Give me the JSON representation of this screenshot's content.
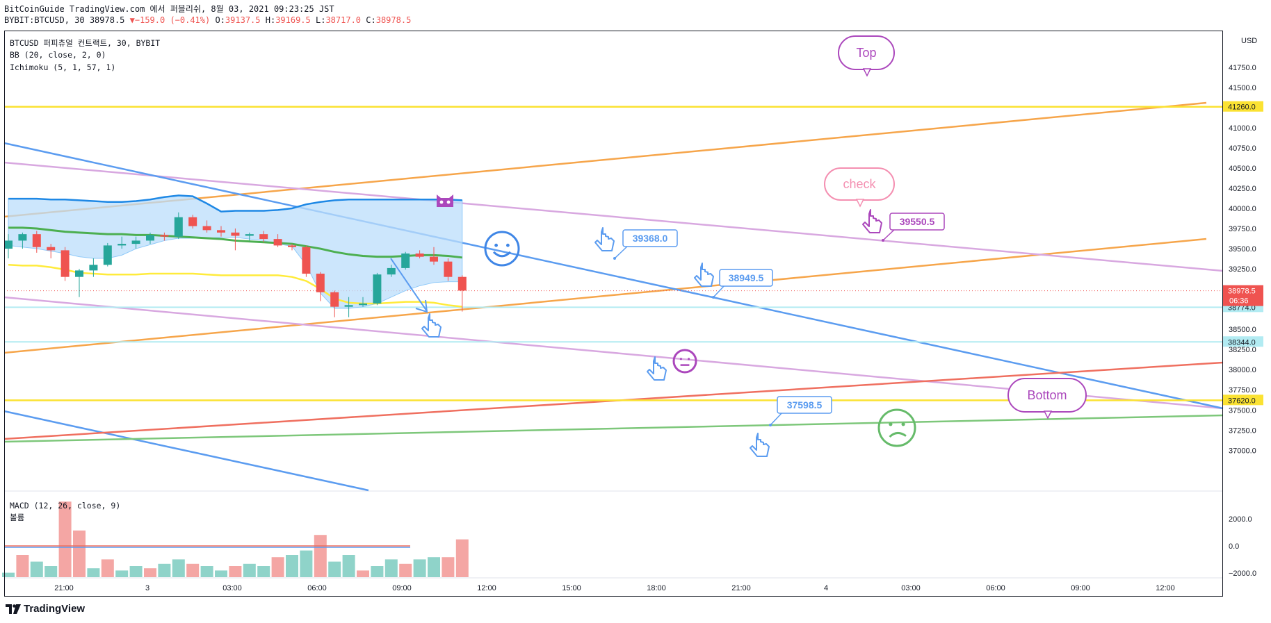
{
  "header": {
    "line1": "BitCoinGuide TradingView.com 에서 퍼블리쉬, 8월 03, 2021 09:23:25 JST",
    "symbol": "BYBIT:BTCUSD, 30",
    "last": "38978.5",
    "change": "▼−159.0 (−0.41%)",
    "o_label": "O:",
    "o": "39137.5",
    "h_label": "H:",
    "h": "39169.5",
    "l_label": "L:",
    "l": "38717.0",
    "c_label": "C:",
    "c": "38978.5"
  },
  "legend": {
    "title": "BTCUSD 퍼피츄얼 컨트랙트, 30, BYBIT",
    "bb": "BB (20, close, 2, 0)",
    "ichimoku": "Ichimoku (5, 1, 57, 1)",
    "macd": "MACD (12, 26, close, 9)",
    "volume": "볼륨"
  },
  "footer": {
    "brand": "TradingView"
  },
  "colors": {
    "up": "#26a69a",
    "down": "#ef5350",
    "bb_mid": "#4caf50",
    "bb_band": "#ffeb3b",
    "cloud": "#bbdefb",
    "tenkan": "#1e88e5",
    "trend_blue": "#5b9cf0",
    "orange": "#f6a54a",
    "purple": "#d8a8e0",
    "red": "#ef6f5f",
    "green": "#7dc77a",
    "yellow": "#fbe232"
  },
  "chart_data": {
    "type": "candlestick",
    "symbol": "BTCUSD",
    "interval": "30",
    "price_axis": {
      "ticks": [
        "41750.0",
        "41500.0",
        "41250.0",
        "41000.0",
        "40750.0",
        "40500.0",
        "40250.0",
        "40000.0",
        "39750.0",
        "39500.0",
        "39250.0",
        "39000.0",
        "38750.0",
        "38500.0",
        "38250.0",
        "38000.0",
        "37750.0",
        "37500.0",
        "37250.0",
        "37000.0"
      ],
      "currency": "USD",
      "ylim": [
        36900,
        41800
      ]
    },
    "time_axis": {
      "ticks": [
        "21:00",
        "3",
        "03:00",
        "06:00",
        "09:00",
        "12:00",
        "15:00",
        "18:00",
        "21:00",
        "4",
        "03:00",
        "06:00",
        "09:00",
        "12:00"
      ]
    },
    "candles": [
      {
        "o": 39500,
        "h": 39680,
        "l": 39380,
        "c": 39600
      },
      {
        "o": 39600,
        "h": 39700,
        "l": 39500,
        "c": 39680
      },
      {
        "o": 39680,
        "h": 39720,
        "l": 39450,
        "c": 39520
      },
      {
        "o": 39520,
        "h": 39560,
        "l": 39380,
        "c": 39480
      },
      {
        "o": 39480,
        "h": 39520,
        "l": 39100,
        "c": 39150
      },
      {
        "o": 39150,
        "h": 39250,
        "l": 38900,
        "c": 39230
      },
      {
        "o": 39230,
        "h": 39380,
        "l": 39150,
        "c": 39300
      },
      {
        "o": 39300,
        "h": 39570,
        "l": 39280,
        "c": 39540
      },
      {
        "o": 39540,
        "h": 39650,
        "l": 39500,
        "c": 39560
      },
      {
        "o": 39560,
        "h": 39650,
        "l": 39500,
        "c": 39600
      },
      {
        "o": 39600,
        "h": 39700,
        "l": 39560,
        "c": 39670
      },
      {
        "o": 39670,
        "h": 39700,
        "l": 39600,
        "c": 39650
      },
      {
        "o": 39650,
        "h": 39950,
        "l": 39620,
        "c": 39890
      },
      {
        "o": 39890,
        "h": 39920,
        "l": 39750,
        "c": 39780
      },
      {
        "o": 39780,
        "h": 39850,
        "l": 39700,
        "c": 39730
      },
      {
        "o": 39730,
        "h": 39780,
        "l": 39650,
        "c": 39700
      },
      {
        "o": 39700,
        "h": 39750,
        "l": 39480,
        "c": 39660
      },
      {
        "o": 39660,
        "h": 39700,
        "l": 39600,
        "c": 39680
      },
      {
        "o": 39680,
        "h": 39720,
        "l": 39580,
        "c": 39620
      },
      {
        "o": 39620,
        "h": 39680,
        "l": 39520,
        "c": 39540
      },
      {
        "o": 39540,
        "h": 39560,
        "l": 39480,
        "c": 39520
      },
      {
        "o": 39520,
        "h": 39540,
        "l": 39150,
        "c": 39190
      },
      {
        "o": 39190,
        "h": 39210,
        "l": 38850,
        "c": 38960
      },
      {
        "o": 38960,
        "h": 38980,
        "l": 38650,
        "c": 38780
      },
      {
        "o": 38780,
        "h": 38900,
        "l": 38650,
        "c": 38800
      },
      {
        "o": 38800,
        "h": 38900,
        "l": 38780,
        "c": 38820
      },
      {
        "o": 38820,
        "h": 39200,
        "l": 38800,
        "c": 39180
      },
      {
        "o": 39180,
        "h": 39300,
        "l": 39150,
        "c": 39260
      },
      {
        "o": 39260,
        "h": 39460,
        "l": 39240,
        "c": 39440
      },
      {
        "o": 39440,
        "h": 39480,
        "l": 39380,
        "c": 39400
      },
      {
        "o": 39400,
        "h": 39520,
        "l": 39300,
        "c": 39340
      },
      {
        "o": 39340,
        "h": 39380,
        "l": 39100,
        "c": 39150
      },
      {
        "o": 39150,
        "h": 39170,
        "l": 38720,
        "c": 38980
      }
    ],
    "bb_mid": [
      39760,
      39760,
      39750,
      39730,
      39710,
      39700,
      39690,
      39680,
      39680,
      39670,
      39670,
      39660,
      39650,
      39640,
      39630,
      39620,
      39600,
      39590,
      39580,
      39570,
      39560,
      39530,
      39500,
      39460,
      39430,
      39410,
      39400,
      39400,
      39410,
      39420,
      39420,
      39410,
      39390
    ],
    "bb_lower": [
      39300,
      39290,
      39290,
      39270,
      39240,
      39200,
      39190,
      39180,
      39180,
      39180,
      39190,
      39190,
      39190,
      39190,
      39180,
      39170,
      39170,
      39170,
      39170,
      39170,
      39150,
      39100,
      39000,
      38880,
      38830,
      38820,
      38820,
      38830,
      38840,
      38840,
      38830,
      38800,
      38780
    ],
    "tenkan": [
      40120,
      40120,
      40120,
      40110,
      40110,
      40100,
      40090,
      40080,
      40080,
      40090,
      40110,
      40140,
      40160,
      40150,
      40060,
      39960,
      39970,
      39970,
      39970,
      39980,
      40000,
      40050,
      40080,
      40100,
      40110,
      40110,
      40110,
      40110,
      40110,
      40110,
      40110,
      40110,
      40100
    ],
    "cloud_low": [
      39540,
      39520,
      39500,
      39470,
      39440,
      39400,
      39380,
      39380,
      39420,
      39500,
      39550,
      39600,
      39630,
      39630,
      39630,
      39640,
      39640,
      39620,
      39600,
      39560,
      39530,
      39300,
      38950,
      38760,
      38760,
      38780,
      38820,
      38900,
      38980,
      39040,
      39080,
      39090,
      39090
    ],
    "macd_hist": [
      -1000,
      -200,
      -500,
      -700,
      2200,
      900,
      -800,
      -400,
      -900,
      -700,
      -800,
      -600,
      -400,
      -600,
      -700,
      -900,
      -700,
      -600,
      -700,
      -300,
      -200,
      0,
      700,
      -500,
      -200,
      -900,
      -700,
      -400,
      -600,
      -400,
      -300,
      -300,
      500
    ],
    "drawings": {
      "horizontal_levels": [
        {
          "price": "41260.0",
          "color": "yellow"
        },
        {
          "price": "38774.0",
          "color": "cyan"
        },
        {
          "price": "38344.0",
          "color": "cyan"
        },
        {
          "price": "37620.0",
          "color": "yellow"
        }
      ],
      "last_price": {
        "price": "38978.5",
        "countdown": "06:36"
      },
      "callouts": [
        {
          "label": "Top",
          "style": "purple-bubble"
        },
        {
          "label": "check",
          "style": "pink-bubble"
        },
        {
          "label": "Bottom",
          "style": "purple-bubble"
        },
        {
          "label": "39368.0",
          "style": "blue-price-note"
        },
        {
          "label": "38949.5",
          "style": "blue-price-note"
        },
        {
          "label": "37598.5",
          "style": "blue-price-note"
        },
        {
          "label": "39550.5",
          "style": "purple-price-note"
        }
      ]
    }
  }
}
